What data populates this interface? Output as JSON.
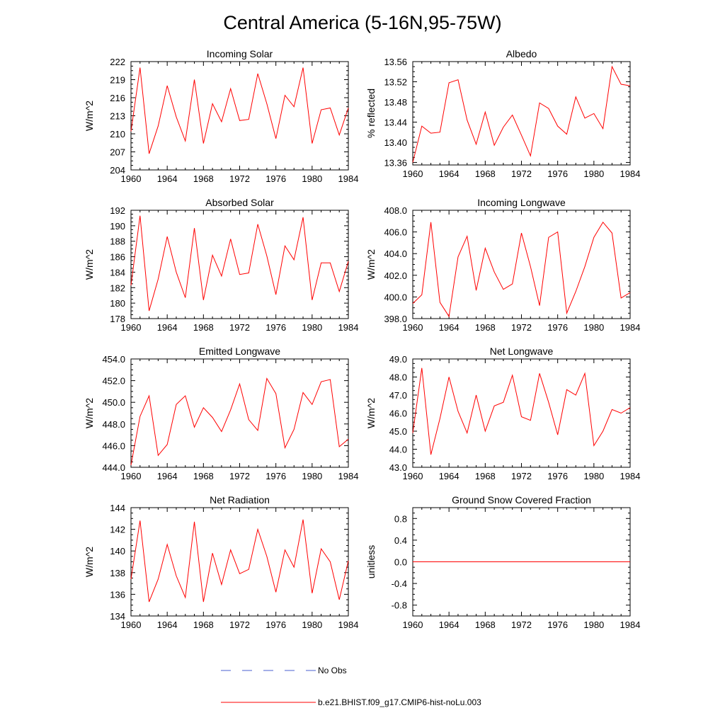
{
  "title": "Central America (5-16N,95-75W)",
  "legend": [
    {
      "label": "No Obs",
      "color": "#4a5fd0",
      "style": "dashed"
    },
    {
      "label": "b.e21.BHIST.f09_g17.CMIP6-hist-noLu.003",
      "color": "#ff0000",
      "style": "solid"
    }
  ],
  "chart_data": [
    {
      "type": "line",
      "title": "Incoming Solar",
      "ylabel": "W/m^2",
      "xlim": [
        1960,
        1984
      ],
      "ylim": [
        204,
        222
      ],
      "xticks": [
        1960,
        1964,
        1968,
        1972,
        1976,
        1980,
        1984
      ],
      "xtick_labels": [
        "1960",
        "1964",
        "1968",
        "1972",
        "1976",
        "1980",
        "1984"
      ],
      "yticks": [
        204,
        207,
        210,
        213,
        216,
        219,
        222
      ],
      "ytick_labels": [
        "204",
        "207",
        "210",
        "213",
        "216",
        "219",
        "222"
      ],
      "series": [
        {
          "color": "#ff0000",
          "x": [
            1960,
            1961,
            1962,
            1963,
            1964,
            1965,
            1966,
            1967,
            1968,
            1969,
            1970,
            1971,
            1972,
            1973,
            1974,
            1975,
            1976,
            1977,
            1978,
            1979,
            1980,
            1981,
            1982,
            1983,
            1984
          ],
          "y": [
            210.4,
            221.0,
            206.7,
            211.3,
            218.0,
            212.8,
            208.8,
            219.0,
            208.4,
            215.0,
            212.0,
            217.5,
            212.2,
            212.4,
            220.0,
            215.0,
            209.2,
            216.4,
            214.5,
            221.0,
            208.4,
            214.0,
            214.3,
            209.8,
            214.3
          ]
        }
      ]
    },
    {
      "type": "line",
      "title": "Albedo",
      "ylabel": "% reflected",
      "xlim": [
        1960,
        1984
      ],
      "ylim": [
        13.355,
        13.56
      ],
      "xticks": [
        1960,
        1964,
        1968,
        1972,
        1976,
        1980,
        1984
      ],
      "xtick_labels": [
        "1960",
        "1964",
        "1968",
        "1972",
        "1976",
        "1980",
        "1984"
      ],
      "yticks": [
        13.36,
        13.4,
        13.44,
        13.48,
        13.52,
        13.56
      ],
      "ytick_labels": [
        "13.36",
        "13.40",
        "13.44",
        "13.48",
        "13.52",
        "13.56"
      ],
      "series": [
        {
          "color": "#ff0000",
          "x": [
            1960,
            1961,
            1962,
            1963,
            1964,
            1965,
            1966,
            1967,
            1968,
            1969,
            1970,
            1971,
            1972,
            1973,
            1974,
            1975,
            1976,
            1977,
            1978,
            1979,
            1980,
            1981,
            1982,
            1983,
            1984
          ],
          "y": [
            13.36,
            13.432,
            13.418,
            13.42,
            13.518,
            13.524,
            13.444,
            13.396,
            13.46,
            13.394,
            13.43,
            13.454,
            13.414,
            13.373,
            13.478,
            13.467,
            13.432,
            13.416,
            13.49,
            13.448,
            13.457,
            13.427,
            13.55,
            13.515,
            13.512
          ]
        }
      ]
    },
    {
      "type": "line",
      "title": "Absorbed Solar",
      "ylabel": "W/m^2",
      "xlim": [
        1960,
        1984
      ],
      "ylim": [
        178,
        192
      ],
      "xticks": [
        1960,
        1964,
        1968,
        1972,
        1976,
        1980,
        1984
      ],
      "xtick_labels": [
        "1960",
        "1964",
        "1968",
        "1972",
        "1976",
        "1980",
        "1984"
      ],
      "yticks": [
        178,
        180,
        182,
        184,
        186,
        188,
        190,
        192
      ],
      "ytick_labels": [
        "178",
        "180",
        "182",
        "184",
        "186",
        "188",
        "190",
        "192"
      ],
      "series": [
        {
          "color": "#ff0000",
          "x": [
            1960,
            1961,
            1962,
            1963,
            1964,
            1965,
            1966,
            1967,
            1968,
            1969,
            1970,
            1971,
            1972,
            1973,
            1974,
            1975,
            1976,
            1977,
            1978,
            1979,
            1980,
            1981,
            1982,
            1983,
            1984
          ],
          "y": [
            182.3,
            191.3,
            179.0,
            183.1,
            188.6,
            184.0,
            180.7,
            189.7,
            180.4,
            186.2,
            183.5,
            188.3,
            183.7,
            183.9,
            190.2,
            186.1,
            181.1,
            187.4,
            185.6,
            191.1,
            180.4,
            185.2,
            185.2,
            181.5,
            185.4
          ]
        }
      ]
    },
    {
      "type": "line",
      "title": "Incoming Longwave",
      "ylabel": "W/m^2",
      "xlim": [
        1960,
        1984
      ],
      "ylim": [
        398.0,
        408.0
      ],
      "xticks": [
        1960,
        1964,
        1968,
        1972,
        1976,
        1980,
        1984
      ],
      "xtick_labels": [
        "1960",
        "1964",
        "1968",
        "1972",
        "1976",
        "1980",
        "1984"
      ],
      "yticks": [
        398.0,
        400.0,
        402.0,
        404.0,
        406.0,
        408.0
      ],
      "ytick_labels": [
        "398.0",
        "400.0",
        "402.0",
        "404.0",
        "406.0",
        "408.0"
      ],
      "series": [
        {
          "color": "#ff0000",
          "x": [
            1960,
            1961,
            1962,
            1963,
            1964,
            1965,
            1966,
            1967,
            1968,
            1969,
            1970,
            1971,
            1972,
            1973,
            1974,
            1975,
            1976,
            1977,
            1978,
            1979,
            1980,
            1981,
            1982,
            1983,
            1984
          ],
          "y": [
            399.4,
            400.2,
            406.9,
            399.5,
            398.2,
            403.7,
            405.6,
            400.6,
            404.5,
            402.3,
            400.7,
            401.2,
            405.9,
            402.8,
            399.2,
            405.5,
            406.0,
            398.5,
            400.5,
            402.8,
            405.5,
            406.9,
            405.9,
            399.9,
            400.4
          ]
        }
      ]
    },
    {
      "type": "line",
      "title": "Emitted Longwave",
      "ylabel": "W/m^2",
      "xlim": [
        1960,
        1984
      ],
      "ylim": [
        444.0,
        454.0
      ],
      "xticks": [
        1960,
        1964,
        1968,
        1972,
        1976,
        1980,
        1984
      ],
      "xtick_labels": [
        "1960",
        "1964",
        "1968",
        "1972",
        "1976",
        "1980",
        "1984"
      ],
      "yticks": [
        444.0,
        446.0,
        448.0,
        450.0,
        452.0,
        454.0
      ],
      "ytick_labels": [
        "444.0",
        "446.0",
        "448.0",
        "450.0",
        "452.0",
        "454.0"
      ],
      "series": [
        {
          "color": "#ff0000",
          "x": [
            1960,
            1961,
            1962,
            1963,
            1964,
            1965,
            1966,
            1967,
            1968,
            1969,
            1970,
            1971,
            1972,
            1973,
            1974,
            1975,
            1976,
            1977,
            1978,
            1979,
            1980,
            1981,
            1982,
            1983,
            1984
          ],
          "y": [
            444.2,
            448.7,
            450.6,
            445.1,
            446.1,
            449.8,
            450.6,
            447.7,
            449.5,
            448.6,
            447.3,
            449.3,
            451.7,
            448.4,
            447.4,
            452.2,
            450.8,
            445.8,
            447.5,
            450.9,
            449.8,
            451.9,
            452.1,
            445.9,
            446.6
          ]
        }
      ]
    },
    {
      "type": "line",
      "title": "Net Longwave",
      "ylabel": "W/m^2",
      "xlim": [
        1960,
        1984
      ],
      "ylim": [
        43.0,
        49.0
      ],
      "xticks": [
        1960,
        1964,
        1968,
        1972,
        1976,
        1980,
        1984
      ],
      "xtick_labels": [
        "1960",
        "1964",
        "1968",
        "1972",
        "1976",
        "1980",
        "1984"
      ],
      "yticks": [
        43.0,
        44.0,
        45.0,
        46.0,
        47.0,
        48.0,
        49.0
      ],
      "ytick_labels": [
        "43.0",
        "44.0",
        "45.0",
        "46.0",
        "47.0",
        "48.0",
        "49.0"
      ],
      "series": [
        {
          "color": "#ff0000",
          "x": [
            1960,
            1961,
            1962,
            1963,
            1964,
            1965,
            1966,
            1967,
            1968,
            1969,
            1970,
            1971,
            1972,
            1973,
            1974,
            1975,
            1976,
            1977,
            1978,
            1979,
            1980,
            1981,
            1982,
            1983,
            1984
          ],
          "y": [
            44.9,
            48.5,
            43.7,
            45.7,
            48.0,
            46.1,
            44.9,
            47.0,
            45.0,
            46.4,
            46.6,
            48.1,
            45.8,
            45.6,
            48.2,
            46.6,
            44.8,
            47.3,
            47.0,
            48.2,
            44.2,
            45.0,
            46.2,
            46.0,
            46.3
          ]
        }
      ]
    },
    {
      "type": "line",
      "title": "Net Radiation",
      "ylabel": "W/m^2",
      "xlim": [
        1960,
        1984
      ],
      "ylim": [
        134,
        144
      ],
      "xticks": [
        1960,
        1964,
        1968,
        1972,
        1976,
        1980,
        1984
      ],
      "xtick_labels": [
        "1960",
        "1964",
        "1968",
        "1972",
        "1976",
        "1980",
        "1984"
      ],
      "yticks": [
        134,
        136,
        138,
        140,
        142,
        144
      ],
      "ytick_labels": [
        "134",
        "136",
        "138",
        "140",
        "142",
        "144"
      ],
      "series": [
        {
          "color": "#ff0000",
          "x": [
            1960,
            1961,
            1962,
            1963,
            1964,
            1965,
            1966,
            1967,
            1968,
            1969,
            1970,
            1971,
            1972,
            1973,
            1974,
            1975,
            1976,
            1977,
            1978,
            1979,
            1980,
            1981,
            1982,
            1983,
            1984
          ],
          "y": [
            137.4,
            142.8,
            135.3,
            137.4,
            140.6,
            137.7,
            135.7,
            142.7,
            135.3,
            139.8,
            136.9,
            140.1,
            137.9,
            138.3,
            142.0,
            139.5,
            136.2,
            140.1,
            138.5,
            142.9,
            136.1,
            140.2,
            139.0,
            135.5,
            139.1
          ]
        }
      ]
    },
    {
      "type": "line",
      "title": "Ground Snow Covered Fraction",
      "ylabel": "unitless",
      "xlim": [
        1960,
        1984
      ],
      "ylim": [
        -1.0,
        1.0
      ],
      "xticks": [
        1960,
        1964,
        1968,
        1972,
        1976,
        1980,
        1984
      ],
      "xtick_labels": [
        "1960",
        "1964",
        "1968",
        "1972",
        "1976",
        "1980",
        "1984"
      ],
      "yticks": [
        -0.8,
        -0.4,
        0.0,
        0.4,
        0.8
      ],
      "ytick_labels": [
        "-0.8",
        "-0.4",
        "0.0",
        "0.4",
        "0.8"
      ],
      "series": [
        {
          "color": "#ff0000",
          "x": [
            1960,
            1984
          ],
          "y": [
            0.0,
            0.0
          ]
        }
      ]
    }
  ]
}
